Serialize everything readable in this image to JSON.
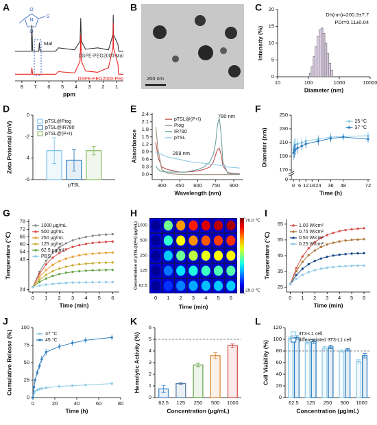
{
  "chart_data": [
    {
      "panel": "A",
      "type": "line",
      "xlabel": "ppm",
      "xlim": [
        8.5,
        0.5
      ],
      "xticks": [
        8,
        7,
        6,
        5,
        4,
        3,
        2,
        1
      ],
      "ylim": [
        0,
        1.1
      ],
      "x": [
        8.5,
        7.3,
        7.26,
        7.2,
        6.75,
        6.7,
        6.65,
        5.5,
        5.3,
        4.1,
        3.7,
        3.65,
        3.6,
        3.3,
        2.4,
        1.6,
        1.27,
        1.25,
        1.23,
        0.9,
        0.85,
        0.5
      ],
      "series": [
        {
          "name": "DSPE-PEG2000-Mal",
          "color": "#333333",
          "values": [
            0.45,
            0.45,
            0.85,
            0.45,
            0.45,
            0.58,
            0.45,
            0.45,
            0.5,
            0.47,
            0.6,
            0.95,
            0.6,
            0.48,
            0.5,
            0.47,
            0.7,
            1.0,
            0.7,
            0.55,
            0.45,
            0.45
          ]
        },
        {
          "name": "DSPE-PEG2000-Pep",
          "color": "#e8231f",
          "values": [
            0.1,
            0.1,
            0.2,
            0.1,
            0.1,
            0.1,
            0.1,
            0.1,
            0.14,
            0.12,
            0.3,
            0.7,
            0.3,
            0.15,
            0.13,
            0.2,
            0.5,
            0.88,
            0.5,
            0.25,
            0.1,
            0.1
          ]
        }
      ],
      "legend": "inline",
      "annotations": [
        "Mal"
      ],
      "structure_labels": [
        "O",
        "N",
        "O",
        "S"
      ]
    },
    {
      "panel": "C",
      "type": "histogram",
      "xlabel": "Diameter (nm)",
      "ylabel": "Intensity (%)",
      "xlog": true,
      "xlim": [
        10,
        10000
      ],
      "xticks": [
        10,
        100,
        1000,
        10000
      ],
      "ylim": [
        0,
        20
      ],
      "yticks": [
        0,
        5,
        10,
        15,
        20
      ],
      "bins": [
        106,
        122,
        142,
        164,
        190,
        220,
        255,
        295,
        342,
        396,
        459,
        531,
        615
      ],
      "values": [
        1,
        3,
        6,
        9,
        12,
        14,
        14.5,
        13,
        10,
        7,
        4,
        2
      ],
      "color": "#e4d6ec",
      "annotations": [
        "Dh(nm)=200.3±7.7",
        "PDI=0.11±0.04"
      ]
    },
    {
      "panel": "D",
      "type": "bar",
      "ylabel": "Zeta Potential (mV)",
      "categories": [
        "pTSL"
      ],
      "ylim": [
        -6,
        0
      ],
      "yticks": [
        -6,
        -4,
        -2,
        0
      ],
      "legend": "upper left",
      "series": [
        {
          "name": "pTSL@Piog",
          "color": "#7ec3ec",
          "values": [
            -3.3
          ],
          "errors": [
            1.2
          ]
        },
        {
          "name": "pTSL@IR780",
          "color": "#2f7fc1",
          "values": [
            -4.2
          ],
          "errors": [
            1.0
          ]
        },
        {
          "name": "pTSL@(P+I)",
          "color": "#8fbf6b",
          "values": [
            -3.3
          ],
          "errors": [
            0.4
          ]
        }
      ]
    },
    {
      "panel": "E",
      "type": "line",
      "xlabel": "Wavelength (nm)",
      "ylabel": "Absorbance",
      "xlim": [
        220,
        980
      ],
      "xticks": [
        300,
        450,
        600,
        750,
        900
      ],
      "ylim": [
        -0.2,
        2.45
      ],
      "yticks": [
        {
          "value": 0,
          "label": "0.0"
        },
        0.3,
        0.6,
        0.9,
        1.2,
        1.5,
        1.8,
        2.1,
        2.4
      ],
      "legend": "upper center",
      "x": [
        250,
        269,
        300,
        350,
        400,
        450,
        500,
        550,
        600,
        650,
        700,
        730,
        750,
        765,
        780,
        795,
        810,
        850,
        900,
        950
      ],
      "series": [
        {
          "name": "pTSL@(P+I)",
          "color": "#b94a48",
          "values": [
            1.3,
            0.7,
            0.3,
            0.2,
            0.15,
            0.1,
            0.1,
            0.12,
            0.15,
            0.2,
            0.3,
            0.5,
            0.8,
            1.0,
            1.05,
            0.8,
            0.35,
            0.08,
            0.04,
            0.03
          ]
        },
        {
          "name": "Piog",
          "color": "#9a8f7a",
          "values": [
            1.9,
            1.0,
            0.2,
            0.05,
            0.02,
            0.01,
            0,
            0,
            0,
            0,
            0,
            0,
            0,
            0,
            0,
            0,
            0,
            0,
            0,
            0
          ]
        },
        {
          "name": "IR780",
          "color": "#6f9fa0",
          "values": [
            0.35,
            0.2,
            0.12,
            0.1,
            0.1,
            0.1,
            0.1,
            0.15,
            0.2,
            0.3,
            0.5,
            0.8,
            1.3,
            2.0,
            2.25,
            1.6,
            0.5,
            0.05,
            0.02,
            0.01
          ]
        },
        {
          "name": "pTSL",
          "color": "#8ecae6",
          "values": [
            0.9,
            0.85,
            0.8,
            0.7,
            0.65,
            0.6,
            0.55,
            0.5,
            0.48,
            0.45,
            0.42,
            0.4,
            0.39,
            0.38,
            0.37,
            0.36,
            0.35,
            0.3,
            0.28,
            0.26
          ]
        }
      ],
      "annotations": [
        "269 nm",
        "780 nm"
      ]
    },
    {
      "panel": "F",
      "type": "line",
      "markers": true,
      "xlabel": "Time (h)",
      "ylabel": "Diameter (nm)",
      "xlim": [
        -2,
        74
      ],
      "xticks": [
        0,
        6,
        12,
        18,
        24,
        36,
        48,
        72
      ],
      "ylim": [
        0,
        250
      ],
      "ybreak": [
        0,
        170
      ],
      "yticks": [
        0,
        170,
        190,
        210,
        230,
        250
      ],
      "legend": "upper right",
      "x": [
        0,
        1,
        2,
        4,
        8,
        12,
        24,
        36,
        48,
        72
      ],
      "series": [
        {
          "name": "25 °C",
          "color": "#8ecae6",
          "values": [
            200,
            205,
            207,
            208,
            210,
            212,
            215,
            218,
            219,
            220
          ],
          "errors": [
            12,
            10,
            10,
            8,
            8,
            8,
            6,
            6,
            5,
            6
          ]
        },
        {
          "name": "37 °C",
          "color": "#2f7fc1",
          "values": [
            195,
            198,
            200,
            202,
            205,
            208,
            212,
            216,
            218,
            215
          ],
          "errors": [
            10,
            10,
            8,
            8,
            6,
            6,
            6,
            5,
            5,
            5
          ]
        }
      ]
    },
    {
      "panel": "G",
      "type": "line",
      "markers": true,
      "xlabel": "Time (min)",
      "ylabel": "Temperature (℃)",
      "xlim": [
        -0.3,
        6.5
      ],
      "xticks": [
        0,
        1,
        2,
        3,
        4,
        5,
        6
      ],
      "ylim": [
        22,
        80
      ],
      "yticks": [
        24,
        48,
        54,
        60,
        66,
        72,
        78
      ],
      "legend": "upper left",
      "x": [
        0,
        0.5,
        1,
        1.5,
        2,
        2.5,
        3,
        3.5,
        4,
        4.5,
        5,
        5.5,
        6
      ],
      "series": [
        {
          "name": "1000 μg/mL",
          "color": "#8c8c8c",
          "values": [
            26,
            38.2,
            46.9,
            53.2,
            57.6,
            60.9,
            63.2,
            64.8,
            66.0,
            66.9,
            67.5,
            67.9,
            68.2
          ]
        },
        {
          "name": "500 μg/mL",
          "color": "#d9534f",
          "values": [
            26,
            36.5,
            44.0,
            49.4,
            53.2,
            56.0,
            58.0,
            59.4,
            60.4,
            61.2,
            61.7,
            62.0,
            62.3
          ]
        },
        {
          "name": "250 μg/mL",
          "color": "#e8a33d",
          "values": [
            26,
            33.9,
            39.6,
            43.7,
            46.6,
            48.7,
            50.2,
            51.3,
            52.1,
            52.6,
            53.0,
            53.3,
            53.5
          ]
        },
        {
          "name": "125 μg/mL",
          "color": "#c9b037",
          "values": [
            26,
            31.7,
            35.7,
            38.6,
            40.7,
            42.2,
            43.3,
            44.1,
            44.6,
            45.0,
            45.3,
            45.5,
            45.6
          ]
        },
        {
          "name": "62.5 μg/mL",
          "color": "#6aa84f",
          "values": [
            26,
            30.0,
            32.8,
            34.8,
            36.3,
            37.4,
            38.1,
            38.6,
            39.0,
            39.3,
            39.5,
            39.6,
            39.7
          ]
        },
        {
          "name": "PBS",
          "color": "#8ecae6",
          "values": [
            26,
            27.1,
            27.9,
            28.5,
            28.9,
            29.2,
            29.5,
            29.6,
            29.7,
            29.8,
            29.9,
            29.9,
            29.9
          ]
        }
      ]
    },
    {
      "panel": "H",
      "type": "heatmap",
      "xlabel": "Time (min)",
      "ylabel": "Concentration of pTSL@(P+I) (μg/mL)",
      "x": [
        0,
        1,
        2,
        3,
        4,
        5,
        6
      ],
      "categories": [
        "1000",
        "500",
        "250",
        "125",
        "62.5"
      ],
      "values": [
        [
          26,
          46.9,
          57.6,
          63.2,
          66.0,
          67.5,
          68.2
        ],
        [
          26,
          44.0,
          53.2,
          58.0,
          60.4,
          61.7,
          62.3
        ],
        [
          26,
          39.6,
          46.6,
          50.2,
          52.1,
          53.0,
          53.5
        ],
        [
          26,
          35.7,
          40.7,
          43.3,
          44.6,
          45.3,
          45.6
        ],
        [
          26,
          32.8,
          36.3,
          38.1,
          39.0,
          39.5,
          39.7
        ]
      ],
      "zlim": [
        25,
        70
      ],
      "zticks": [
        {
          "value": 70,
          "label": "70.0 ℃"
        },
        {
          "value": 25,
          "label": "25.0 ℃"
        }
      ]
    },
    {
      "panel": "I",
      "type": "line",
      "markers": true,
      "xlabel": "Time (min)",
      "ylabel": "Temperature (℃)",
      "xlim": [
        -0.3,
        6.5
      ],
      "xticks": [
        0,
        1,
        2,
        3,
        4,
        5,
        6
      ],
      "ylim": [
        22,
        68
      ],
      "yticks": [
        25,
        35,
        45,
        55,
        65
      ],
      "legend": "upper left",
      "x": [
        0,
        0.5,
        1,
        1.5,
        2,
        2.5,
        3,
        3.5,
        4,
        4.5,
        5,
        5.5,
        6
      ],
      "series": [
        {
          "name": "1.00 W/cm²",
          "color": "#d9534f",
          "values": [
            27,
            37.2,
            44.5,
            49.8,
            53.5,
            56.2,
            58.1,
            59.5,
            60.5,
            61.2,
            61.7,
            62.1,
            62.4
          ]
        },
        {
          "name": "0.75 W/cm²",
          "color": "#b07a3b",
          "values": [
            27,
            35.2,
            41.1,
            45.3,
            48.3,
            50.5,
            52.1,
            53.2,
            54.0,
            54.6,
            55.0,
            55.2,
            55.5
          ]
        },
        {
          "name": "0.50 W/cm²",
          "color": "#1f4e8c",
          "values": [
            27,
            32.7,
            36.7,
            39.6,
            41.7,
            43.2,
            44.3,
            45.1,
            45.6,
            46.0,
            46.3,
            46.5,
            46.6
          ]
        },
        {
          "name": "0.25 W/cm²",
          "color": "#8ecae6",
          "values": [
            27,
            30.4,
            32.8,
            34.6,
            35.8,
            36.7,
            37.4,
            37.8,
            38.2,
            38.4,
            38.6,
            38.7,
            38.8
          ]
        }
      ]
    },
    {
      "panel": "J",
      "type": "line",
      "markers": true,
      "xlabel": "Time (h)",
      "ylabel": "Cumulative Release (%)",
      "xlim": [
        0,
        80
      ],
      "xticks": [
        0,
        20,
        40,
        60,
        80
      ],
      "ylim": [
        0,
        100
      ],
      "yticks": [
        0,
        25,
        50,
        75,
        100
      ],
      "legend": "upper left",
      "x": [
        0,
        1,
        2,
        4,
        6,
        8,
        12,
        24,
        36,
        48,
        72
      ],
      "series": [
        {
          "name": "37 °C",
          "color": "#8ecae6",
          "values": [
            0,
            6,
            9,
            11,
            12,
            13,
            14,
            16,
            17,
            18,
            20
          ],
          "errors": [
            0,
            1,
            1,
            2,
            2,
            2,
            2,
            2,
            2,
            2,
            3
          ]
        },
        {
          "name": "45 °C",
          "color": "#2f7fc1",
          "values": [
            0,
            15,
            25,
            36,
            45,
            55,
            65,
            73,
            78,
            82,
            86
          ],
          "errors": [
            0,
            2,
            3,
            4,
            4,
            5,
            5,
            4,
            4,
            4,
            4
          ]
        }
      ]
    },
    {
      "panel": "K",
      "type": "bar",
      "xlabel": "Concentration (μg/mL)",
      "ylabel": "Hemolytic Activity (%)",
      "categories": [
        "62.5",
        "125",
        "250",
        "500",
        "1000"
      ],
      "ylim": [
        0,
        6
      ],
      "yticks": [
        0,
        1,
        2,
        3,
        4,
        5,
        6
      ],
      "refline": 5,
      "series": [
        {
          "colors": [
            "#4a8fd1",
            "#5b7fa8",
            "#6aa84f",
            "#e08a3c",
            "#d9534f"
          ],
          "values": [
            0.75,
            1.2,
            2.8,
            3.6,
            4.45
          ],
          "errors": [
            0.3,
            0.08,
            0.15,
            0.25,
            0.15
          ]
        }
      ]
    },
    {
      "panel": "L",
      "type": "bar",
      "xlabel": "Concentration (μg/mL)",
      "ylabel": "Cell Viability (%)",
      "categories": [
        "62.5",
        "125",
        "250",
        "500",
        "1000"
      ],
      "ylim": [
        0,
        120
      ],
      "yticks": [
        0,
        20,
        40,
        60,
        80,
        100,
        120
      ],
      "refline": 80,
      "legend": "upper right",
      "series": [
        {
          "name": "3T3-L1 cell",
          "color": "#8ecae6",
          "values": [
            102,
            95,
            85,
            80,
            62
          ],
          "errors": [
            3,
            3,
            3,
            2,
            3
          ]
        },
        {
          "name": "differentiated 3T3-L1 cell",
          "color": "#2f7fc1",
          "values": [
            103,
            96,
            87,
            82,
            72
          ],
          "errors": [
            3,
            3,
            3,
            2,
            4
          ]
        }
      ]
    }
  ],
  "tem": {
    "panel": "B",
    "scale_bar": "200 nm"
  }
}
